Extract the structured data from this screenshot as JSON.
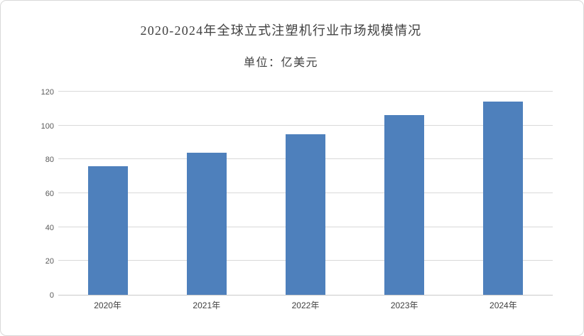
{
  "chart_data": {
    "type": "bar",
    "title": "2020-2024年全球立式注塑机行业市场规模情况",
    "subtitle": "单位：亿美元",
    "categories": [
      "2020年",
      "2021年",
      "2022年",
      "2023年",
      "2024年"
    ],
    "values": [
      76,
      84,
      95,
      106,
      114
    ],
    "xlabel": "",
    "ylabel": "",
    "ylim": [
      0,
      120
    ],
    "yticks": [
      0,
      20,
      40,
      60,
      80,
      100,
      120
    ],
    "grid": true,
    "legend_position": "none",
    "colors": {
      "bar": "#4E80BC",
      "gridline": "#D9D9D9",
      "axis_line": "#C9C9C9",
      "title_text": "#404040",
      "tick_text": "#595959",
      "frame_border": "#D9D9D9",
      "background": "#FFFFFF"
    }
  }
}
